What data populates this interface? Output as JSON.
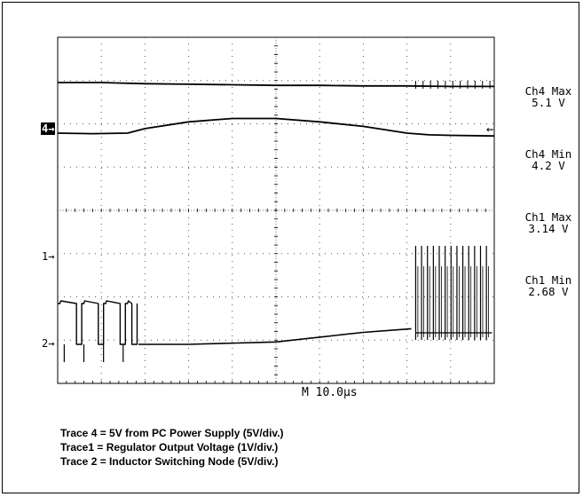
{
  "chart_data": {
    "type": "line",
    "title": "",
    "xlabel": "",
    "ylabel": "",
    "grid": true,
    "divisions": {
      "x": 10,
      "y": 8
    },
    "timebase": "M 10.0µs",
    "channel_markers": {
      "ch4": "4→",
      "ch1": "1→",
      "ch2": "2→",
      "ch4_right": "←"
    },
    "readouts": [
      {
        "label": "Ch4 Max",
        "value": "5.1 V"
      },
      {
        "label": "Ch4 Min",
        "value": "4.2 V"
      },
      {
        "label": "Ch1 Max",
        "value": "3.14 V"
      },
      {
        "label": "Ch1 Min",
        "value": "2.68 V"
      }
    ],
    "series": [
      {
        "trace": "4-max",
        "x": [
          0,
          1,
          2,
          3,
          4,
          5,
          6,
          7,
          8,
          9,
          10
        ],
        "y": [
          5.1,
          5.1,
          5.08,
          5.07,
          5.06,
          5.05,
          5.05,
          5.04,
          5.04,
          5.03,
          5.03
        ]
      },
      {
        "trace": "4-min",
        "x": [
          0,
          0.8,
          1.6,
          2.0,
          3.0,
          4.0,
          5.0,
          6.0,
          7.0,
          8.0,
          8.5,
          9.0,
          10.0
        ],
        "y": [
          4.2,
          4.19,
          4.2,
          4.28,
          4.4,
          4.46,
          4.46,
          4.4,
          4.32,
          4.2,
          4.17,
          4.16,
          4.15
        ]
      },
      {
        "trace": "1",
        "x": [
          1.85,
          3,
          5,
          6,
          7,
          8.1
        ],
        "y": [
          2.85,
          2.85,
          2.87,
          2.91,
          2.95,
          2.98
        ]
      },
      {
        "trace": "2",
        "x": [
          0,
          1.8
        ],
        "y": [
          0,
          0
        ],
        "switching": true
      }
    ]
  },
  "captions": [
    "Trace 4 = 5V from PC Power Supply (5V/div.)",
    "Trace1 = Regulator Output Voltage (1V/div.)",
    "Trace 2 = Inductor Switching Node (5V/div.)"
  ]
}
